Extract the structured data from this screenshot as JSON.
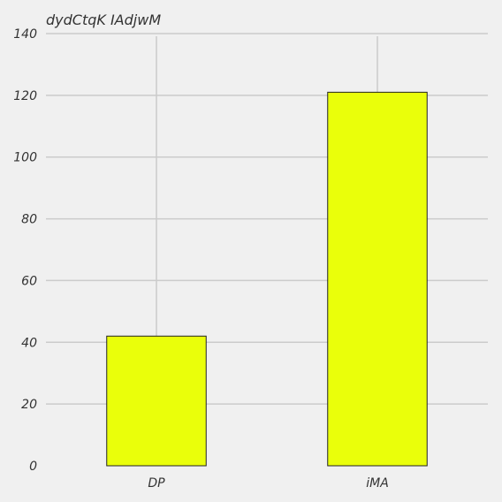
{
  "chart_data": {
    "type": "bar",
    "title": "dydCtqK IAdjwM",
    "xlabel": "",
    "ylabel": "",
    "categories": [
      "DP",
      "iMA"
    ],
    "values": [
      42,
      121
    ],
    "ylim": [
      0,
      140
    ],
    "yticks": [
      0,
      20,
      40,
      60,
      80,
      100,
      120,
      140
    ],
    "bar_color": "#eaff0a",
    "grid": true
  }
}
